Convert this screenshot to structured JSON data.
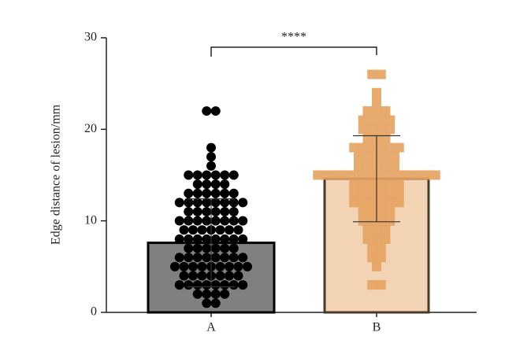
{
  "chart_data": {
    "type": "bar_scatter",
    "y_label": "Edge distance of lesion/mm",
    "annotation": "****",
    "categories": [
      "A",
      "B"
    ],
    "values": [
      7.6,
      14.6
    ],
    "errors": [
      4.8,
      4.7
    ],
    "bar_colors": [
      "#808080",
      "#f2d3b3"
    ],
    "bar_edge_colors": [
      "#000000",
      "#4a3a2a"
    ],
    "point_colors": [
      "#000000",
      "#e6a25f"
    ],
    "points": [
      [
        22,
        22,
        18,
        17,
        16,
        15,
        15,
        15,
        15,
        15,
        15,
        14,
        14,
        14,
        14,
        13,
        13,
        13,
        13,
        13,
        13,
        12,
        12,
        12,
        12,
        12,
        12,
        12,
        12,
        11,
        11,
        11,
        11,
        11,
        11,
        10,
        10,
        10,
        10,
        10,
        10,
        10,
        10,
        9,
        9,
        9,
        9,
        9,
        9,
        9,
        8,
        8,
        8,
        8,
        8,
        8,
        8,
        8,
        7,
        7,
        7,
        7,
        7,
        7,
        6,
        6,
        6,
        6,
        6,
        6,
        6,
        6,
        5,
        5,
        5,
        5,
        5,
        5,
        5,
        5,
        5,
        4,
        4,
        4,
        4,
        4,
        4,
        4,
        3,
        3,
        3,
        3,
        3,
        3,
        3,
        3,
        2,
        2,
        2,
        2,
        1,
        1
      ],
      [
        26,
        26,
        24,
        23,
        22,
        22,
        22,
        21,
        21,
        21,
        21,
        20,
        20,
        20,
        20,
        19,
        19,
        19,
        18,
        18,
        18,
        18,
        18,
        18,
        17,
        17,
        17,
        17,
        17,
        16,
        16,
        16,
        16,
        16,
        15,
        15,
        15,
        15,
        15,
        15,
        15,
        15,
        15,
        15,
        15,
        15,
        15,
        15,
        14,
        14,
        14,
        14,
        14,
        14,
        13,
        13,
        13,
        13,
        13,
        13,
        12,
        12,
        12,
        12,
        12,
        12,
        11,
        11,
        11,
        11,
        10,
        10,
        10,
        10,
        9,
        9,
        9,
        8,
        8,
        8,
        7,
        7,
        6,
        6,
        5,
        3,
        3
      ]
    ],
    "ylim": [
      0,
      30
    ],
    "yticks": [
      0,
      10,
      20,
      30
    ]
  }
}
